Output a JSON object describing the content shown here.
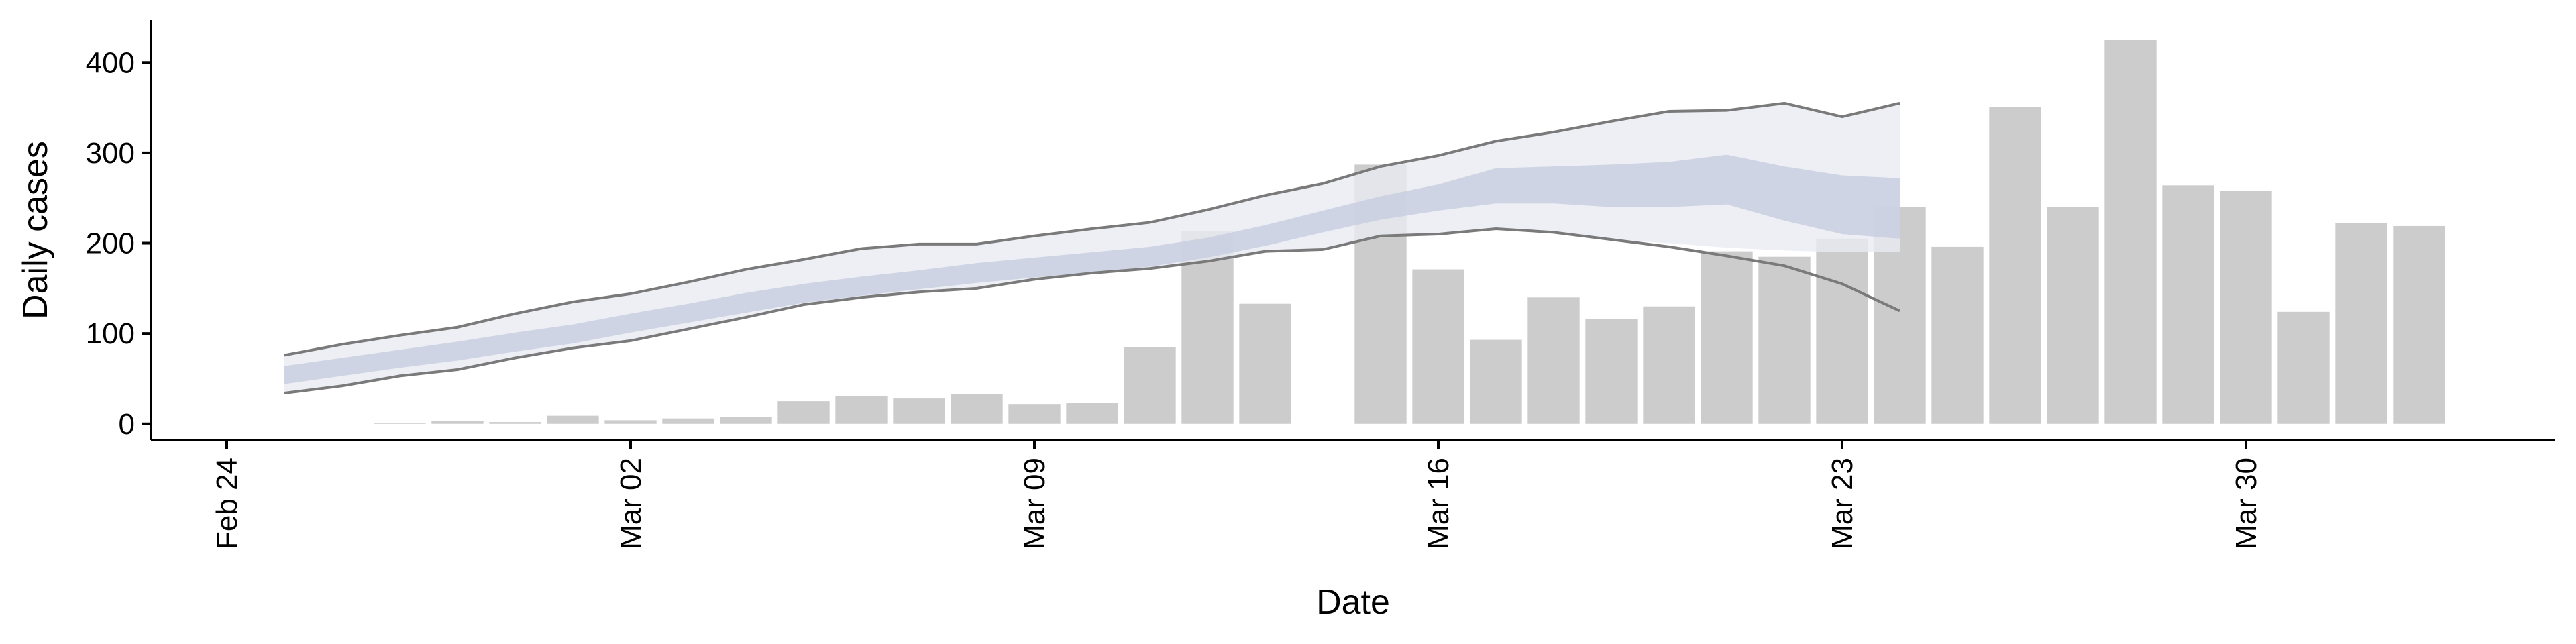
{
  "chart_data": {
    "type": "bar",
    "xlabel": "Date",
    "ylabel": "Daily cases",
    "x": [
      "Feb 24",
      "Feb 25",
      "Feb 26",
      "Feb 27",
      "Feb 28",
      "Feb 29",
      "Mar 01",
      "Mar 02",
      "Mar 03",
      "Mar 04",
      "Mar 05",
      "Mar 06",
      "Mar 07",
      "Mar 08",
      "Mar 09",
      "Mar 10",
      "Mar 11",
      "Mar 12",
      "Mar 13",
      "Mar 14",
      "Mar 15",
      "Mar 16",
      "Mar 17",
      "Mar 18",
      "Mar 19",
      "Mar 20",
      "Mar 21",
      "Mar 22",
      "Mar 23",
      "Mar 24",
      "Mar 25",
      "Mar 26",
      "Mar 27",
      "Mar 28",
      "Mar 29",
      "Mar 30",
      "Mar 31",
      "Apr 01",
      "Apr 02"
    ],
    "values": [
      null,
      null,
      null,
      1,
      3,
      2,
      9,
      4,
      6,
      8,
      25,
      31,
      28,
      33,
      22,
      23,
      85,
      213,
      133,
      null,
      287,
      171,
      93,
      140,
      116,
      130,
      191,
      185,
      205,
      240,
      196,
      351,
      240,
      425,
      264,
      258,
      124,
      222,
      219
    ],
    "color": "#cccccc",
    "bands": [
      {
        "color": "#e9ebf3",
        "lower": [
          null,
          34,
          42,
          53,
          60,
          73,
          84,
          92,
          105,
          118,
          132,
          140,
          146,
          150,
          160,
          167,
          172,
          180,
          191,
          193,
          208,
          210,
          216,
          212,
          204,
          200,
          195,
          192,
          190,
          190,
          null,
          null,
          null,
          null,
          null,
          null,
          null,
          null,
          null
        ],
        "upper": [
          null,
          76,
          88,
          98,
          107,
          122,
          135,
          144,
          157,
          171,
          182,
          194,
          199,
          199,
          208,
          216,
          223,
          237,
          253,
          266,
          285,
          297,
          313,
          323,
          335,
          346,
          347,
          355,
          340,
          355,
          null,
          null,
          null,
          null,
          null,
          null,
          null,
          null,
          null
        ]
      },
      {
        "color": "#c7cde0",
        "lower": [
          null,
          44,
          53,
          62,
          70,
          80,
          89,
          101,
          112,
          123,
          134,
          142,
          149,
          156,
          162,
          168,
          174,
          184,
          197,
          212,
          226,
          236,
          244,
          244,
          240,
          240,
          243,
          225,
          210,
          205,
          null,
          null,
          null,
          null,
          null,
          null,
          null,
          null,
          null
        ],
        "upper": [
          null,
          64,
          73,
          82,
          91,
          101,
          110,
          122,
          133,
          145,
          155,
          163,
          170,
          178,
          184,
          190,
          196,
          206,
          220,
          236,
          252,
          265,
          283,
          285,
          287,
          290,
          298,
          285,
          275,
          272,
          null,
          null,
          null,
          null,
          null,
          null,
          null,
          null,
          null
        ]
      }
    ],
    "lines": [
      {
        "color": "#7a7a7a",
        "values": [
          null,
          76,
          88,
          98,
          107,
          122,
          135,
          144,
          157,
          171,
          182,
          194,
          199,
          199,
          208,
          216,
          223,
          237,
          253,
          266,
          285,
          297,
          313,
          323,
          335,
          346,
          347,
          355,
          340,
          355,
          null,
          null,
          null,
          null,
          null,
          null,
          null,
          null,
          null
        ]
      },
      {
        "color": "#7a7a7a",
        "values": [
          null,
          34,
          42,
          53,
          60,
          73,
          84,
          92,
          105,
          118,
          132,
          140,
          146,
          150,
          160,
          167,
          172,
          180,
          191,
          193,
          208,
          210,
          216,
          212,
          204,
          196,
          186,
          175,
          155,
          125,
          null,
          null,
          null,
          null,
          null,
          null,
          null,
          null,
          null
        ]
      }
    ],
    "xticks": [
      "Feb 24",
      "Mar 02",
      "Mar 09",
      "Mar 16",
      "Mar 23",
      "Mar 30"
    ],
    "ylim": [
      -18,
      447
    ],
    "yticks": [
      0,
      100,
      200,
      300,
      400
    ]
  }
}
